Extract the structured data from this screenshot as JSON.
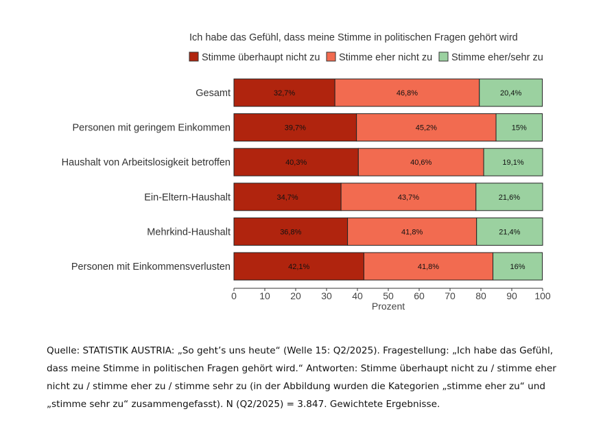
{
  "chart_data": {
    "type": "bar",
    "orientation": "horizontal",
    "stacked": true,
    "title": "Ich habe das Gefühl, dass meine Stimme in politischen Fragen gehört wird",
    "xlabel": "Prozent",
    "ylabel": "",
    "xlim": [
      0,
      100
    ],
    "xticks": [
      "0",
      "10",
      "20",
      "30",
      "40",
      "50",
      "60",
      "70",
      "80",
      "90",
      "100"
    ],
    "legend_position": "top",
    "categories": [
      "Gesamt",
      "Personen mit geringem Einkommen",
      "Haushalt von Arbeitslosigkeit betroffen",
      "Ein-Eltern-Haushalt",
      "Mehrkind-Haushalt",
      "Personen mit Einkommensverlusten"
    ],
    "series": [
      {
        "name": "Stimme überhaupt nicht zu",
        "color": "#B0240E",
        "values": [
          32.7,
          39.7,
          40.3,
          34.7,
          36.8,
          42.1
        ],
        "labels": [
          "32,7%",
          "39,7%",
          "40,3%",
          "34,7%",
          "36,8%",
          "42,1%"
        ]
      },
      {
        "name": "Stimme eher nicht zu",
        "color": "#F26B50",
        "values": [
          46.8,
          45.2,
          40.6,
          43.7,
          41.8,
          41.8
        ],
        "labels": [
          "46,8%",
          "45,2%",
          "40,6%",
          "43,7%",
          "41,8%",
          "41,8%"
        ]
      },
      {
        "name": "Stimme eher/sehr zu",
        "color": "#9BD1A0",
        "values": [
          20.4,
          15,
          19.1,
          21.6,
          21.4,
          16
        ],
        "labels": [
          "20,4%",
          "15%",
          "19,1%",
          "21,6%",
          "21,4%",
          "16%"
        ]
      }
    ]
  },
  "source_note": "Quelle: STATISTIK AUSTRIA: „So geht’s uns heute“ (Welle 15: Q2/2025). Fragestellung: „Ich habe das Gefühl, dass meine Stimme in politischen Fragen gehört wird.“ Antworten: Stimme überhaupt nicht zu / stimme eher nicht zu / stimme eher zu / stimme sehr zu (in der Abbildung wurden die Kategorien „stimme eher zu“ und „stimme sehr zu“ zusammengefasst). N (Q2/2025) = 3.847. Gewichtete Ergebnisse."
}
